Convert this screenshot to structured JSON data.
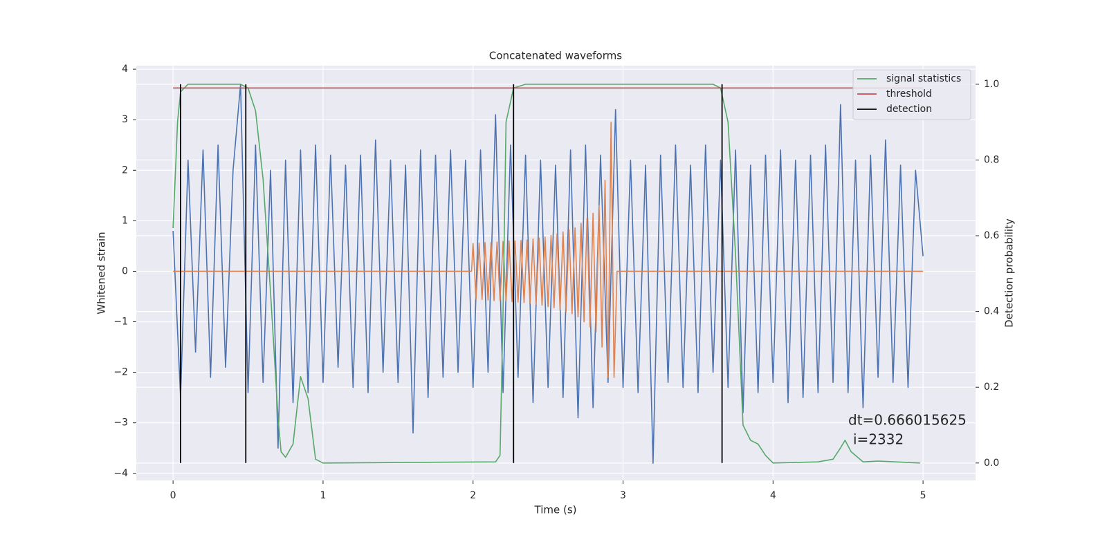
{
  "chart_data": {
    "type": "line",
    "title": "Concatenated waveforms",
    "x_label": "Time (s)",
    "y_label": "Whitened strain",
    "y2_label": "Detection probability",
    "xlim": [
      -0.245,
      5.35
    ],
    "ylim": [
      -4.14,
      4.07
    ],
    "y2lim": [
      -0.046,
      1.049
    ],
    "xticks": [
      0,
      1,
      2,
      3,
      4,
      5
    ],
    "yticks": [
      {
        "value": -4,
        "label": "−4"
      },
      {
        "value": -3,
        "label": "−3"
      },
      {
        "value": -2,
        "label": "−2"
      },
      {
        "value": -1,
        "label": "−1"
      },
      0,
      1,
      2,
      3,
      4
    ],
    "y2ticks": [
      {
        "value": 0,
        "label": "0.0"
      },
      {
        "value": 0.2,
        "label": "0.2"
      },
      {
        "value": 0.4,
        "label": "0.4"
      },
      {
        "value": 0.6,
        "label": "0.6"
      },
      {
        "value": 0.8,
        "label": "0.8"
      },
      {
        "value": 1,
        "label": "1.0"
      }
    ],
    "grid": true,
    "legend": "upper right",
    "series": [
      {
        "color": "#4c72b0",
        "x": [
          0,
          0.05,
          0.1,
          0.15,
          0.2,
          0.25,
          0.3,
          0.35,
          0.4,
          0.45,
          0.5,
          0.55,
          0.6,
          0.65,
          0.7,
          0.75,
          0.8,
          0.85,
          0.9,
          0.95,
          1,
          1.05,
          1.1,
          1.15,
          1.2,
          1.25,
          1.3,
          1.35,
          1.4,
          1.45,
          1.5,
          1.55,
          1.6,
          1.65,
          1.7,
          1.75,
          1.8,
          1.85,
          1.9,
          1.95,
          2,
          2.05,
          2.1,
          2.15,
          2.2,
          2.25,
          2.3,
          2.35,
          2.4,
          2.45,
          2.5,
          2.55,
          2.6,
          2.65,
          2.7,
          2.75,
          2.8,
          2.85,
          2.9,
          2.95,
          3,
          3.05,
          3.1,
          3.15,
          3.2,
          3.25,
          3.3,
          3.35,
          3.4,
          3.45,
          3.5,
          3.55,
          3.6,
          3.65,
          3.7,
          3.75,
          3.8,
          3.85,
          3.9,
          3.95,
          4,
          4.05,
          4.1,
          4.15,
          4.2,
          4.25,
          4.3,
          4.35,
          4.4,
          4.45,
          4.5,
          4.55,
          4.6,
          4.65,
          4.7,
          4.75,
          4.8,
          4.85,
          4.9,
          4.95,
          5
        ],
        "values": [
          0.8,
          -2.5,
          2.2,
          -1.6,
          2.4,
          -2.1,
          2.5,
          -1.9,
          2.0,
          3.7,
          -2.4,
          2.5,
          -2.2,
          2.0,
          -3.5,
          2.2,
          -2.6,
          2.4,
          -2.4,
          2.5,
          -2.2,
          2.3,
          -1.9,
          2.1,
          -2.3,
          2.3,
          -2.4,
          2.6,
          -2.0,
          2.2,
          -2.2,
          2.1,
          -3.2,
          2.4,
          -2.5,
          2.3,
          -2.1,
          2.4,
          -2.0,
          2.2,
          -2.3,
          2.4,
          -2.0,
          3.1,
          -2.4,
          2.5,
          -2.1,
          2.3,
          -2.6,
          2.2,
          -2.3,
          2.1,
          -2.5,
          2.4,
          -2.9,
          2.5,
          -2.7,
          2.3,
          -2.2,
          3.2,
          -2.3,
          2.2,
          -2.4,
          2.1,
          -3.8,
          2.3,
          -2.2,
          2.5,
          -2.3,
          2.1,
          -2.4,
          2.5,
          -2.0,
          2.2,
          -2.3,
          2.4,
          -2.8,
          2.1,
          -2.4,
          2.3,
          -2.2,
          2.4,
          -2.6,
          2.2,
          -2.5,
          2.3,
          -2.4,
          2.5,
          -2.2,
          3.3,
          -2.4,
          2.2,
          -2.7,
          2.3,
          -2.1,
          2.6,
          -2.2,
          2.1,
          -2.3,
          2.0,
          0.3
        ]
      },
      {
        "color": "#dd8452",
        "x": [
          0,
          1.99,
          2,
          2.02,
          2.04,
          2.06,
          2.08,
          2.1,
          2.12,
          2.14,
          2.16,
          2.18,
          2.2,
          2.22,
          2.24,
          2.26,
          2.28,
          2.3,
          2.32,
          2.34,
          2.36,
          2.38,
          2.4,
          2.42,
          2.44,
          2.46,
          2.48,
          2.5,
          2.52,
          2.54,
          2.56,
          2.58,
          2.6,
          2.62,
          2.64,
          2.66,
          2.68,
          2.7,
          2.72,
          2.74,
          2.76,
          2.78,
          2.8,
          2.82,
          2.84,
          2.86,
          2.88,
          2.9,
          2.92,
          2.94,
          2.96,
          5
        ],
        "values": [
          0,
          0,
          0.55,
          -0.55,
          0.56,
          -0.56,
          0.57,
          -0.57,
          0.57,
          -0.58,
          0.58,
          -0.58,
          0.59,
          -0.59,
          0.6,
          -0.6,
          0.6,
          -0.61,
          0.61,
          -0.62,
          0.62,
          -0.63,
          0.64,
          -0.65,
          0.66,
          -0.67,
          0.68,
          -0.7,
          0.71,
          -0.72,
          0.74,
          -0.76,
          0.78,
          -0.8,
          0.82,
          -0.84,
          0.86,
          -0.9,
          0.95,
          -1.0,
          1.05,
          -1.1,
          1.15,
          -1.2,
          1.3,
          -1.5,
          1.8,
          -2.1,
          2.95,
          -2.1,
          0,
          0
        ]
      },
      {
        "name": "signal statistics",
        "color": "#55a868",
        "axis": "y2",
        "x": [
          0,
          0.03,
          0.05,
          0.1,
          0.45,
          0.5,
          0.55,
          0.6,
          0.65,
          0.7,
          0.72,
          0.75,
          0.8,
          0.85,
          0.9,
          0.95,
          1,
          2.15,
          2.18,
          2.2,
          2.22,
          2.27,
          2.35,
          3.6,
          3.65,
          3.7,
          3.75,
          3.8,
          3.85,
          3.9,
          3.95,
          4,
          4.3,
          4.4,
          4.45,
          4.48,
          4.52,
          4.6,
          4.7,
          4.98
        ],
        "values": [
          0.62,
          0.9,
          0.98,
          1.0,
          1.0,
          0.99,
          0.93,
          0.75,
          0.45,
          0.12,
          0.03,
          0.015,
          0.05,
          0.228,
          0.17,
          0.01,
          0,
          0.003,
          0.02,
          0.4,
          0.9,
          0.99,
          1.0,
          1.0,
          0.99,
          0.9,
          0.55,
          0.1,
          0.06,
          0.05,
          0.02,
          0,
          0.003,
          0.01,
          0.04,
          0.06,
          0.03,
          0.003,
          0.005,
          0
        ]
      },
      {
        "name": "threshold",
        "color": "#c44e52",
        "axis": "y2",
        "x": [
          0,
          5
        ],
        "values": [
          0.99,
          0.99
        ]
      }
    ],
    "detections": {
      "name": "detection",
      "color": "#000000",
      "x": [
        0.05,
        0.485,
        2.27,
        3.66
      ],
      "ylim": [
        0,
        1
      ]
    },
    "annotations": [
      "dt=0.666015625",
      "i=2332"
    ]
  }
}
